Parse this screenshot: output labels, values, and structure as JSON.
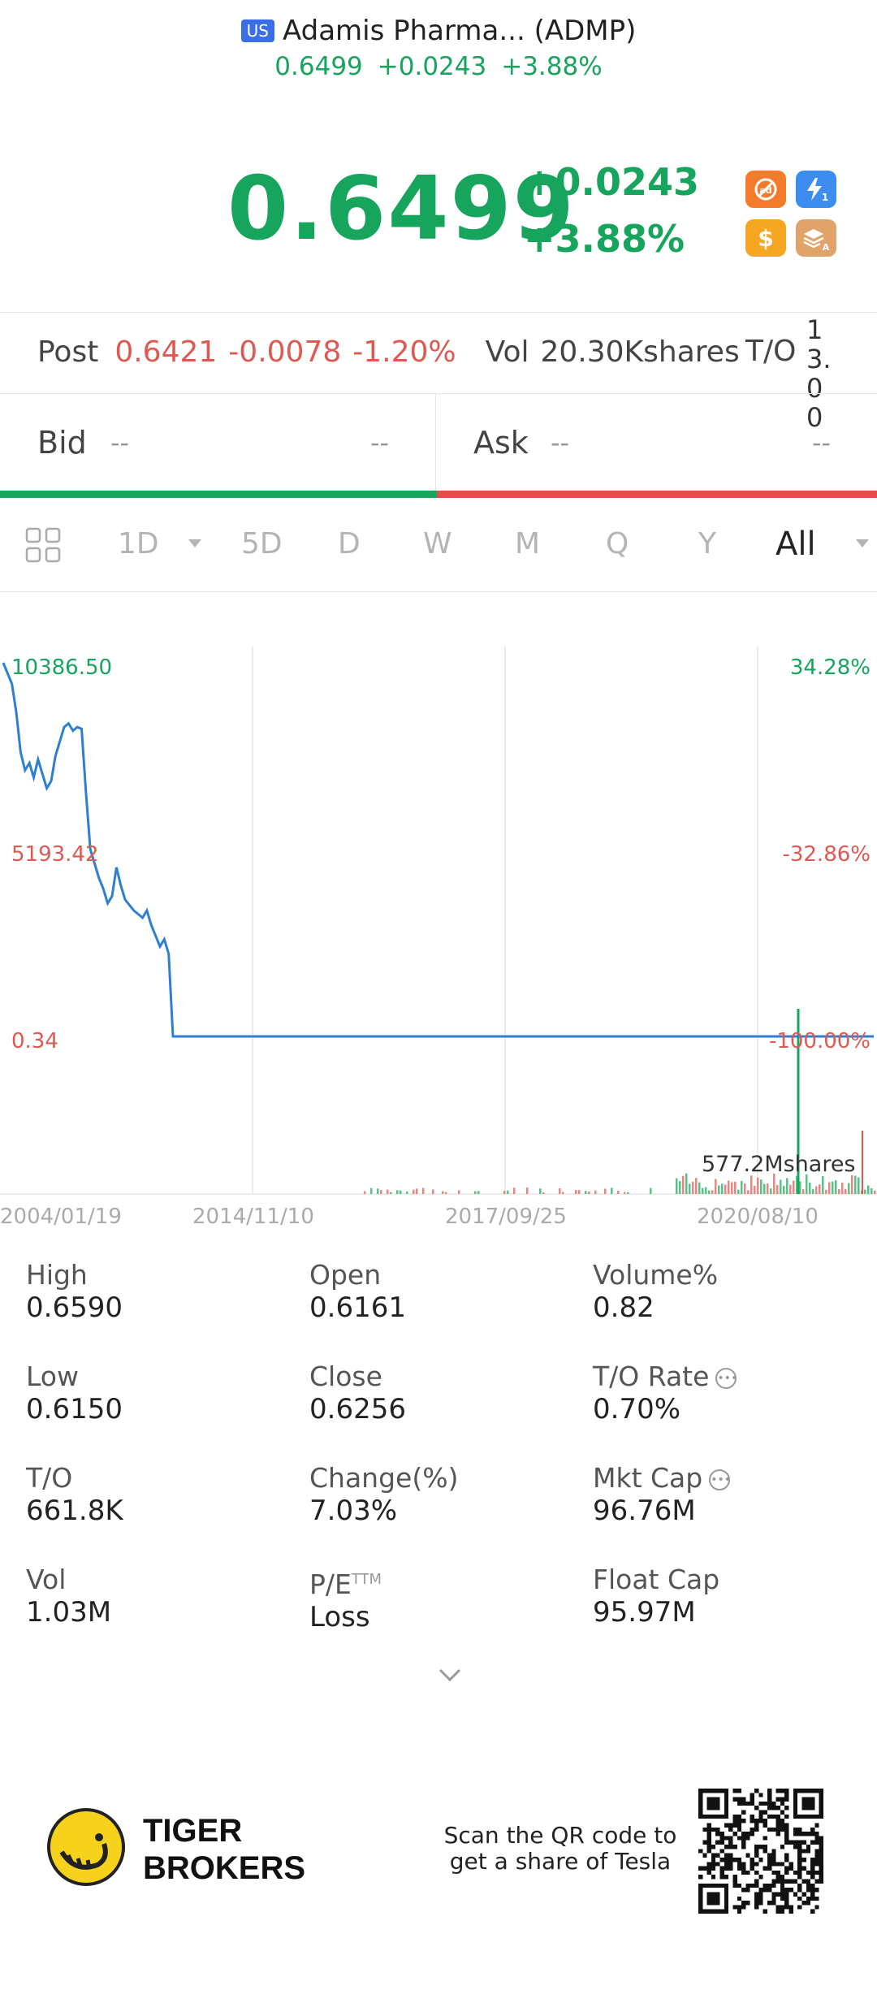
{
  "header": {
    "market_badge": "US",
    "title": "Adamis Pharma... (ADMP)",
    "price": "0.6499",
    "change": "+0.0243",
    "change_pct": "+3.88%"
  },
  "quote": {
    "price": "0.6499",
    "change": "+0.0243",
    "change_pct": "+3.88%",
    "icons": [
      {
        "name": "no-ads-icon",
        "color": "#f47b2b"
      },
      {
        "name": "lightning-level1-icon",
        "color": "#3d8cf0"
      },
      {
        "name": "dollar-icon",
        "color": "#f5a623"
      },
      {
        "name": "layers-a-icon",
        "color": "#e0a36a"
      }
    ]
  },
  "post": {
    "label": "Post",
    "price": "0.6421",
    "change": "-0.0078",
    "change_pct": "-1.20%",
    "vol_label": "Vol",
    "vol_value": "20.30Kshares",
    "to_label": "T/O",
    "to_value": "13.00"
  },
  "bidask": {
    "bid_label": "Bid",
    "bid_price": "--",
    "bid_size": "--",
    "ask_label": "Ask",
    "ask_price": "--",
    "ask_size": "--"
  },
  "tabs": [
    "1D",
    "5D",
    "D",
    "W",
    "M",
    "Q",
    "Y",
    "All"
  ],
  "active_tab": "All",
  "chart_data": {
    "type": "line",
    "y_left_labels": [
      "10386.50",
      "5193.42",
      "0.34"
    ],
    "y_right_labels": [
      "34.28%",
      "-32.86%",
      "-100.00%"
    ],
    "x_labels": [
      "2004/01/19",
      "2014/11/10",
      "2017/09/25",
      "2020/08/10"
    ],
    "volume_label": "577.2Mshares",
    "ylim": [
      0.34,
      10386.5
    ],
    "line_color": "#2f7fd1",
    "price_series": [
      {
        "t": 0.0,
        "v": 10386.5
      },
      {
        "t": 0.01,
        "v": 9800
      },
      {
        "t": 0.015,
        "v": 9000
      },
      {
        "t": 0.02,
        "v": 7900
      },
      {
        "t": 0.025,
        "v": 7400
      },
      {
        "t": 0.03,
        "v": 7600
      },
      {
        "t": 0.035,
        "v": 7200
      },
      {
        "t": 0.04,
        "v": 7700
      },
      {
        "t": 0.045,
        "v": 7300
      },
      {
        "t": 0.05,
        "v": 6900
      },
      {
        "t": 0.055,
        "v": 7100
      },
      {
        "t": 0.06,
        "v": 7800
      },
      {
        "t": 0.07,
        "v": 8600
      },
      {
        "t": 0.075,
        "v": 8700
      },
      {
        "t": 0.08,
        "v": 8500
      },
      {
        "t": 0.085,
        "v": 8600
      },
      {
        "t": 0.09,
        "v": 8550
      },
      {
        "t": 0.095,
        "v": 6800
      },
      {
        "t": 0.1,
        "v": 5200
      },
      {
        "t": 0.105,
        "v": 4800
      },
      {
        "t": 0.11,
        "v": 4400
      },
      {
        "t": 0.115,
        "v": 4100
      },
      {
        "t": 0.12,
        "v": 3700
      },
      {
        "t": 0.125,
        "v": 3900
      },
      {
        "t": 0.13,
        "v": 4700
      },
      {
        "t": 0.135,
        "v": 4200
      },
      {
        "t": 0.14,
        "v": 3800
      },
      {
        "t": 0.15,
        "v": 3500
      },
      {
        "t": 0.16,
        "v": 3300
      },
      {
        "t": 0.165,
        "v": 3500
      },
      {
        "t": 0.17,
        "v": 3100
      },
      {
        "t": 0.175,
        "v": 2800
      },
      {
        "t": 0.18,
        "v": 2500
      },
      {
        "t": 0.185,
        "v": 2700
      },
      {
        "t": 0.19,
        "v": 2300
      },
      {
        "t": 0.195,
        "v": 0.34
      },
      {
        "t": 0.9,
        "v": 0.34
      },
      {
        "t": 1.0,
        "v": 0.34
      }
    ]
  },
  "stats": [
    {
      "label": "High",
      "value": "0.6590"
    },
    {
      "label": "Open",
      "value": "0.6161"
    },
    {
      "label": "Volume%",
      "value": "0.82"
    },
    {
      "label": "Low",
      "value": "0.6150"
    },
    {
      "label": "Close",
      "value": "0.6256"
    },
    {
      "label": "T/O Rate",
      "value": "0.70%",
      "info": true
    },
    {
      "label": "T/O",
      "value": "661.8K"
    },
    {
      "label": "Change(%)",
      "value": "7.03%"
    },
    {
      "label": "Mkt Cap",
      "value": "96.76M",
      "info": true
    },
    {
      "label": "Vol",
      "value": "1.03M"
    },
    {
      "label": "P/E",
      "sup": "TTM",
      "value": "Loss"
    },
    {
      "label": "Float Cap",
      "value": "95.97M"
    }
  ],
  "footer": {
    "brand_line1": "TIGER",
    "brand_line2": "BROKERS",
    "qr_line1": "Scan the QR code to",
    "qr_line2": "get a share of Tesla"
  }
}
